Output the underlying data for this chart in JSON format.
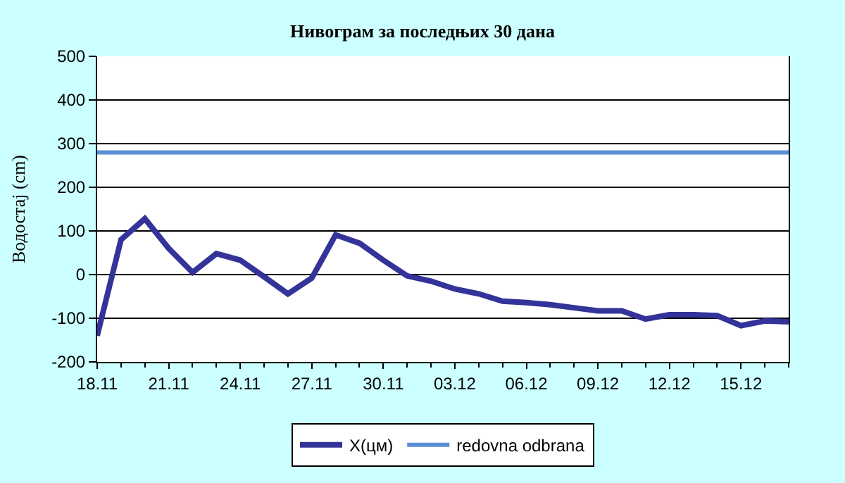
{
  "chart_data": {
    "type": "line",
    "title": "Нивограм за последњих 30 дана",
    "ylabel": "Водостај (cm)",
    "categories": [
      "18.11",
      null,
      null,
      "21.11",
      null,
      null,
      "24.11",
      null,
      null,
      "27.11",
      null,
      null,
      "30.11",
      null,
      null,
      "03.12",
      null,
      null,
      "06.12",
      null,
      null,
      "09.12",
      null,
      null,
      "12.12",
      null,
      null,
      "15.12",
      null,
      null
    ],
    "series": [
      {
        "name": "X(цм)",
        "color": "#333399",
        "values": [
          -140,
          80,
          128,
          60,
          5,
          48,
          33,
          -5,
          -44,
          -8,
          91,
          72,
          33,
          -3,
          -15,
          -33,
          -44,
          -61,
          -64,
          -69,
          -76,
          -83,
          -83,
          -102,
          -92,
          -92,
          -94,
          -117,
          -106,
          -108
        ]
      }
    ],
    "ref_lines": [
      {
        "axis": "y",
        "value": 280,
        "label": "redovna odbrana",
        "color": "#5b8fd6"
      }
    ],
    "ylim": [
      -200,
      500
    ],
    "yticks": [
      -200,
      -100,
      0,
      100,
      200,
      300,
      400,
      500
    ],
    "grid": "y",
    "legend": "bottom",
    "marker": "none",
    "line_style": "solid"
  }
}
